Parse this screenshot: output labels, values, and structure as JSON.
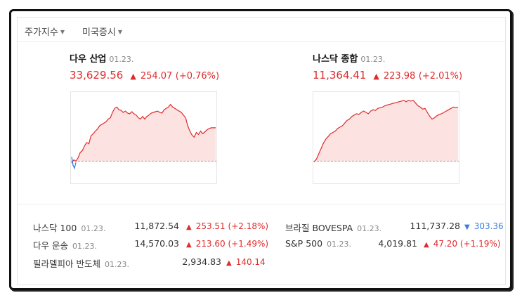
{
  "tabs": [
    {
      "label": "주가지수"
    },
    {
      "label": "미국증시"
    }
  ],
  "panels": [
    {
      "name": "다우 산업",
      "date": "01.23.",
      "value": "33,629.56",
      "change": "254.07",
      "pct": "(+0.76%)",
      "chart_points": [
        4,
        9,
        7,
        12,
        20,
        23,
        30,
        35,
        33,
        45,
        48,
        52,
        55,
        60,
        62,
        64,
        66,
        70,
        72,
        80,
        86,
        88,
        84,
        83,
        80,
        82,
        79,
        78,
        81,
        78,
        76,
        72,
        70,
        74,
        70,
        74,
        76,
        79,
        80,
        81,
        82,
        80,
        79,
        84,
        86,
        88,
        92,
        88,
        86,
        84,
        82,
        80,
        76,
        72,
        60,
        52,
        46,
        43,
        50,
        47,
        52,
        48,
        51,
        54,
        56,
        57,
        57,
        57
      ]
    },
    {
      "name": "나스닥 종합",
      "date": "01.23.",
      "value": "11,364.41",
      "change": "223.98",
      "pct": "(+2.01%)",
      "chart_points": [
        6,
        10,
        18,
        26,
        34,
        40,
        44,
        48,
        50,
        52,
        56,
        58,
        60,
        64,
        68,
        70,
        74,
        76,
        78,
        77,
        80,
        82,
        80,
        78,
        82,
        84,
        83,
        86,
        87,
        88,
        90,
        91,
        92,
        93,
        94,
        95,
        96,
        97,
        98,
        96,
        98,
        97,
        98,
        94,
        90,
        88,
        85,
        86,
        80,
        74,
        70,
        72,
        75,
        77,
        78,
        80,
        82,
        84,
        86,
        88,
        87,
        88
      ]
    }
  ],
  "list": [
    {
      "name": "나스닥 100",
      "date": "01.23.",
      "value": "11,872.54",
      "change": "253.51",
      "pct": "(+2.18%)",
      "dir": "up"
    },
    {
      "name": "브라질 BOVESPA",
      "date": "01.23.",
      "value": "111,737.28",
      "change": "303.36",
      "pct": "",
      "dir": "down"
    },
    {
      "name": "다우 운송",
      "date": "01.23.",
      "value": "14,570.03",
      "change": "213.60",
      "pct": "(+1.49%)",
      "dir": "up"
    },
    {
      "name": "S&P 500",
      "date": "01.23.",
      "value": "4,019.81",
      "change": "47.20",
      "pct": "(+1.19%)",
      "dir": "up"
    },
    {
      "name": "필라델피아 반도체",
      "date": "01.23.",
      "value": "2,934.83",
      "change": "140.14",
      "pct": "",
      "dir": "up"
    }
  ],
  "colors": {
    "up": "#e02b2b",
    "down": "#3b7ddd",
    "fill": "#fde2e2",
    "baseline": "#9ab"
  },
  "icons": {
    "tab_caret": "caret-down-icon",
    "up_arrow": "triangle-up-icon",
    "down_arrow": "triangle-down-icon"
  }
}
